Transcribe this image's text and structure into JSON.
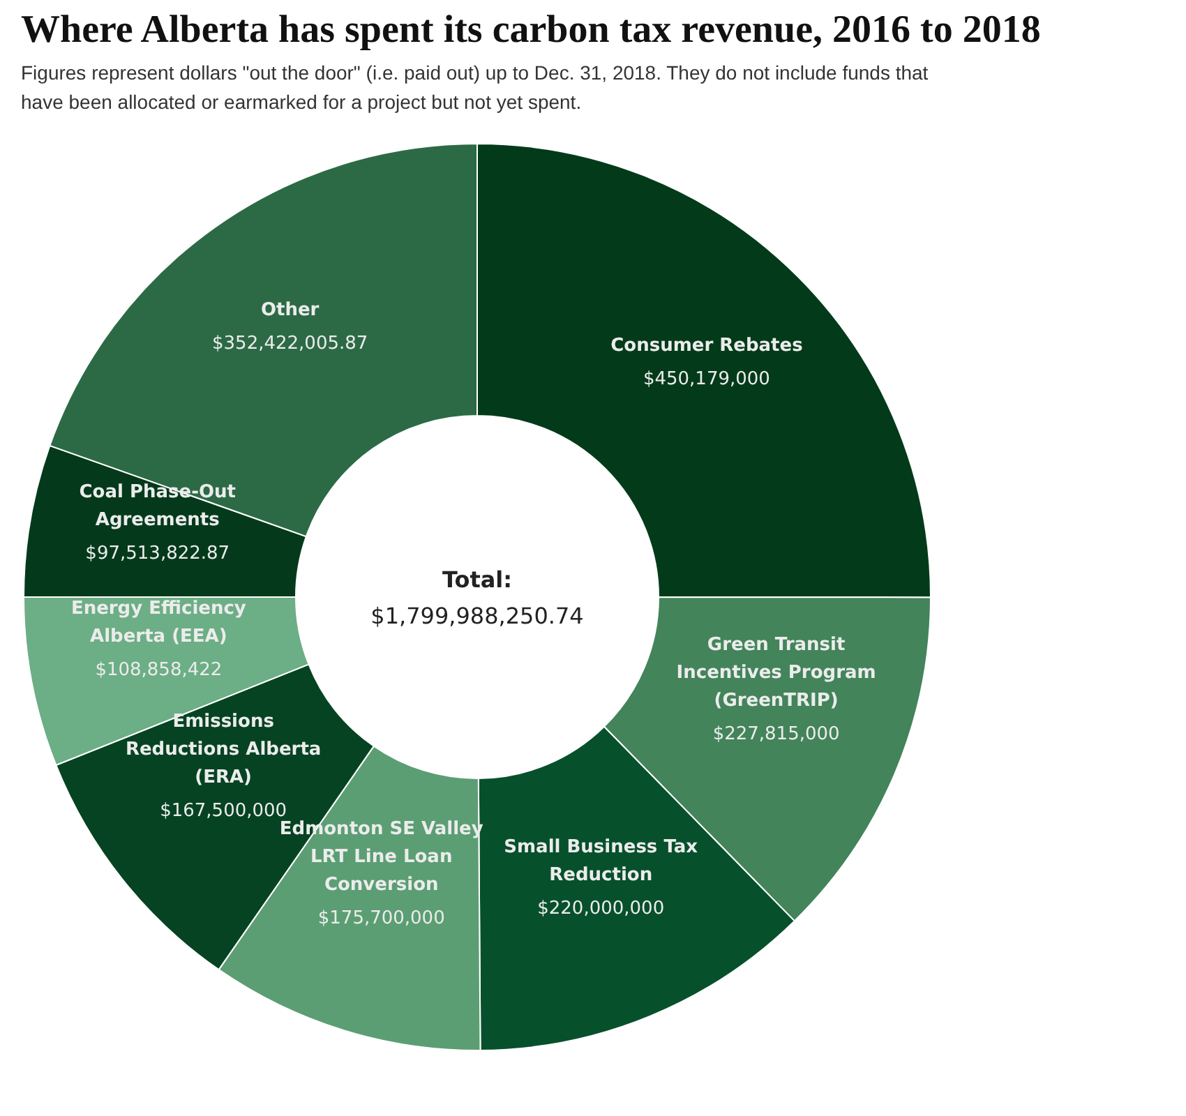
{
  "chart_data": {
    "type": "donut",
    "title": "Where Alberta has spent its carbon tax revenue, 2016 to 2018",
    "subtitle": "Figures represent dollars \"out the door\" (i.e. paid out) up to Dec. 31, 2018. They do not include funds that have been allocated or earmarked for a project but not yet spent.",
    "categories": [
      "Consumer Rebates",
      "Green Transit Incentives Program (GreenTRIP)",
      "Small Business Tax Reduction",
      "Edmonton SE Valley LRT Line Loan Conversion",
      "Emissions Reductions Alberta (ERA)",
      "Energy Efficiency Alberta (EEA)",
      "Coal Phase-Out Agreements",
      "Other"
    ],
    "values": [
      450179000,
      227815000,
      220000000,
      175700000,
      167500000,
      108858422,
      97513822.87,
      352422005.87
    ],
    "value_labels": [
      "$450,179,000",
      "$227,815,000",
      "$220,000,000",
      "$175,700,000",
      "$167,500,000",
      "$108,858,422",
      "$97,513,822.87",
      "$352,422,005.87"
    ],
    "colors": [
      "#033b1a",
      "#43845a",
      "#07502c",
      "#5b9e73",
      "#064322",
      "#6cae85",
      "#043a1b",
      "#2c6a46"
    ],
    "annotations": [
      "Total:",
      "$1,799,988,250.74"
    ]
  }
}
